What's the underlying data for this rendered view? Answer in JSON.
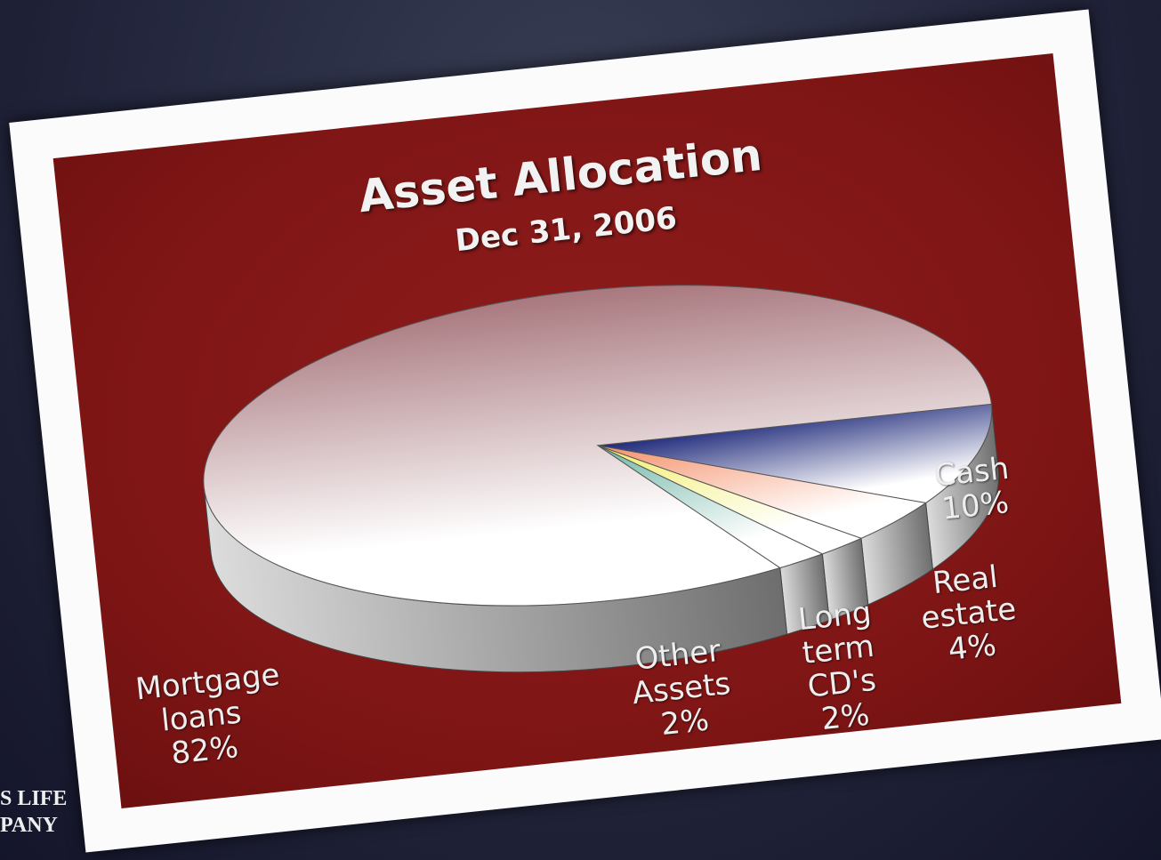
{
  "chart_data": {
    "type": "pie",
    "title": "Asset Allocation",
    "subtitle": "Dec 31, 2006",
    "categories": [
      "Cash",
      "Real estate",
      "Long term CD's",
      "Other Assets",
      "Mortgage loans"
    ],
    "values": [
      10,
      4,
      2,
      2,
      82
    ],
    "value_labels": [
      "10%",
      "4%",
      "2%",
      "2%",
      "82%"
    ],
    "colors": [
      "#1f2a7a",
      "#f4906a",
      "#f2ee6a",
      "#6fb7a8",
      "#a8787e"
    ]
  },
  "corner_text": [
    "S LIFE",
    "PANY"
  ]
}
